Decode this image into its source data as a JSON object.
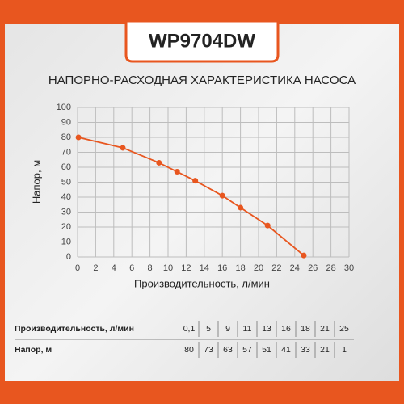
{
  "header": {
    "title": "WP9704DW"
  },
  "chart_data": {
    "type": "line",
    "title": "НАПОРНО-РАСХОДНАЯ ХАРАКТЕРИСТИКА НАСОСА",
    "x_label": "Производительность, л/мин",
    "y_label": "Напор, м",
    "x": [
      0.1,
      5,
      9,
      11,
      13,
      16,
      18,
      21,
      25
    ],
    "series": [
      {
        "name": "Напор, м",
        "color": "#e8561f",
        "values": [
          80,
          73,
          63,
          57,
          51,
          41,
          33,
          21,
          1
        ]
      }
    ],
    "xlim": [
      0,
      30
    ],
    "xticks": [
      0,
      2,
      4,
      6,
      8,
      10,
      12,
      14,
      16,
      18,
      20,
      22,
      24,
      26,
      28,
      30
    ],
    "ylim": [
      0,
      100
    ],
    "yticks": [
      0,
      10,
      20,
      30,
      40,
      50,
      60,
      70,
      80,
      90,
      100
    ],
    "grid": true
  },
  "table": {
    "rows": [
      [
        "Производительность, л/мин",
        "0,1",
        "5",
        "9",
        "11",
        "13",
        "16",
        "18",
        "21",
        "25"
      ],
      [
        "Напор, м",
        "80",
        "73",
        "63",
        "57",
        "51",
        "41",
        "33",
        "21",
        "1"
      ]
    ]
  }
}
